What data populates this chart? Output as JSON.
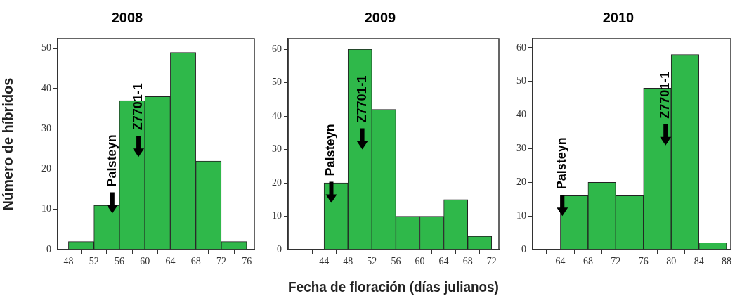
{
  "chart_data": [
    {
      "type": "histogram",
      "title": "2008",
      "ylabel": "Número de híbridos",
      "bins": [
        48,
        52,
        56,
        60,
        64,
        68,
        72,
        76
      ],
      "values": [
        2,
        11,
        37,
        38,
        49,
        22,
        2
      ],
      "color": "#2fb84a",
      "xlim": [
        46.3,
        77.2
      ],
      "xticks": [
        48,
        52,
        56,
        60,
        64,
        68,
        72,
        76
      ],
      "ylim": [
        0,
        52.4
      ],
      "yticks": [
        0,
        10,
        20,
        30,
        40,
        50
      ],
      "grid": false,
      "legend": false,
      "annotations": [
        "Palsteyn",
        "Z7701-1"
      ]
    },
    {
      "type": "histogram",
      "title": "2009",
      "xlabel": "Fecha de floración (días julianos)",
      "bins": [
        44,
        48,
        52,
        56,
        60,
        64,
        68,
        72
      ],
      "values": [
        20,
        60,
        42,
        10,
        10,
        15,
        4
      ],
      "color": "#2fb84a",
      "xlim": [
        38,
        73.2
      ],
      "xticks": [
        44,
        48,
        52,
        56,
        60,
        64,
        68,
        72
      ],
      "ylim": [
        0,
        63.2
      ],
      "yticks": [
        0,
        10,
        20,
        30,
        40,
        50,
        60
      ],
      "grid": false,
      "legend": false,
      "annotations": [
        "Palsteyn",
        "Z7701-1"
      ]
    },
    {
      "type": "histogram",
      "title": "2010",
      "bins": [
        64,
        68,
        72,
        76,
        80,
        84,
        88
      ],
      "values": [
        16,
        20,
        16,
        48,
        58,
        2
      ],
      "color": "#2fb84a",
      "xlim": [
        60,
        88.6
      ],
      "xticks": [
        64,
        68,
        72,
        76,
        80,
        84,
        88
      ],
      "ylim": [
        0,
        62.7
      ],
      "yticks": [
        0,
        10,
        20,
        30,
        40,
        50,
        60
      ],
      "grid": false,
      "legend": false,
      "annotations": [
        "Palsteyn",
        "Z7701-1"
      ]
    }
  ]
}
